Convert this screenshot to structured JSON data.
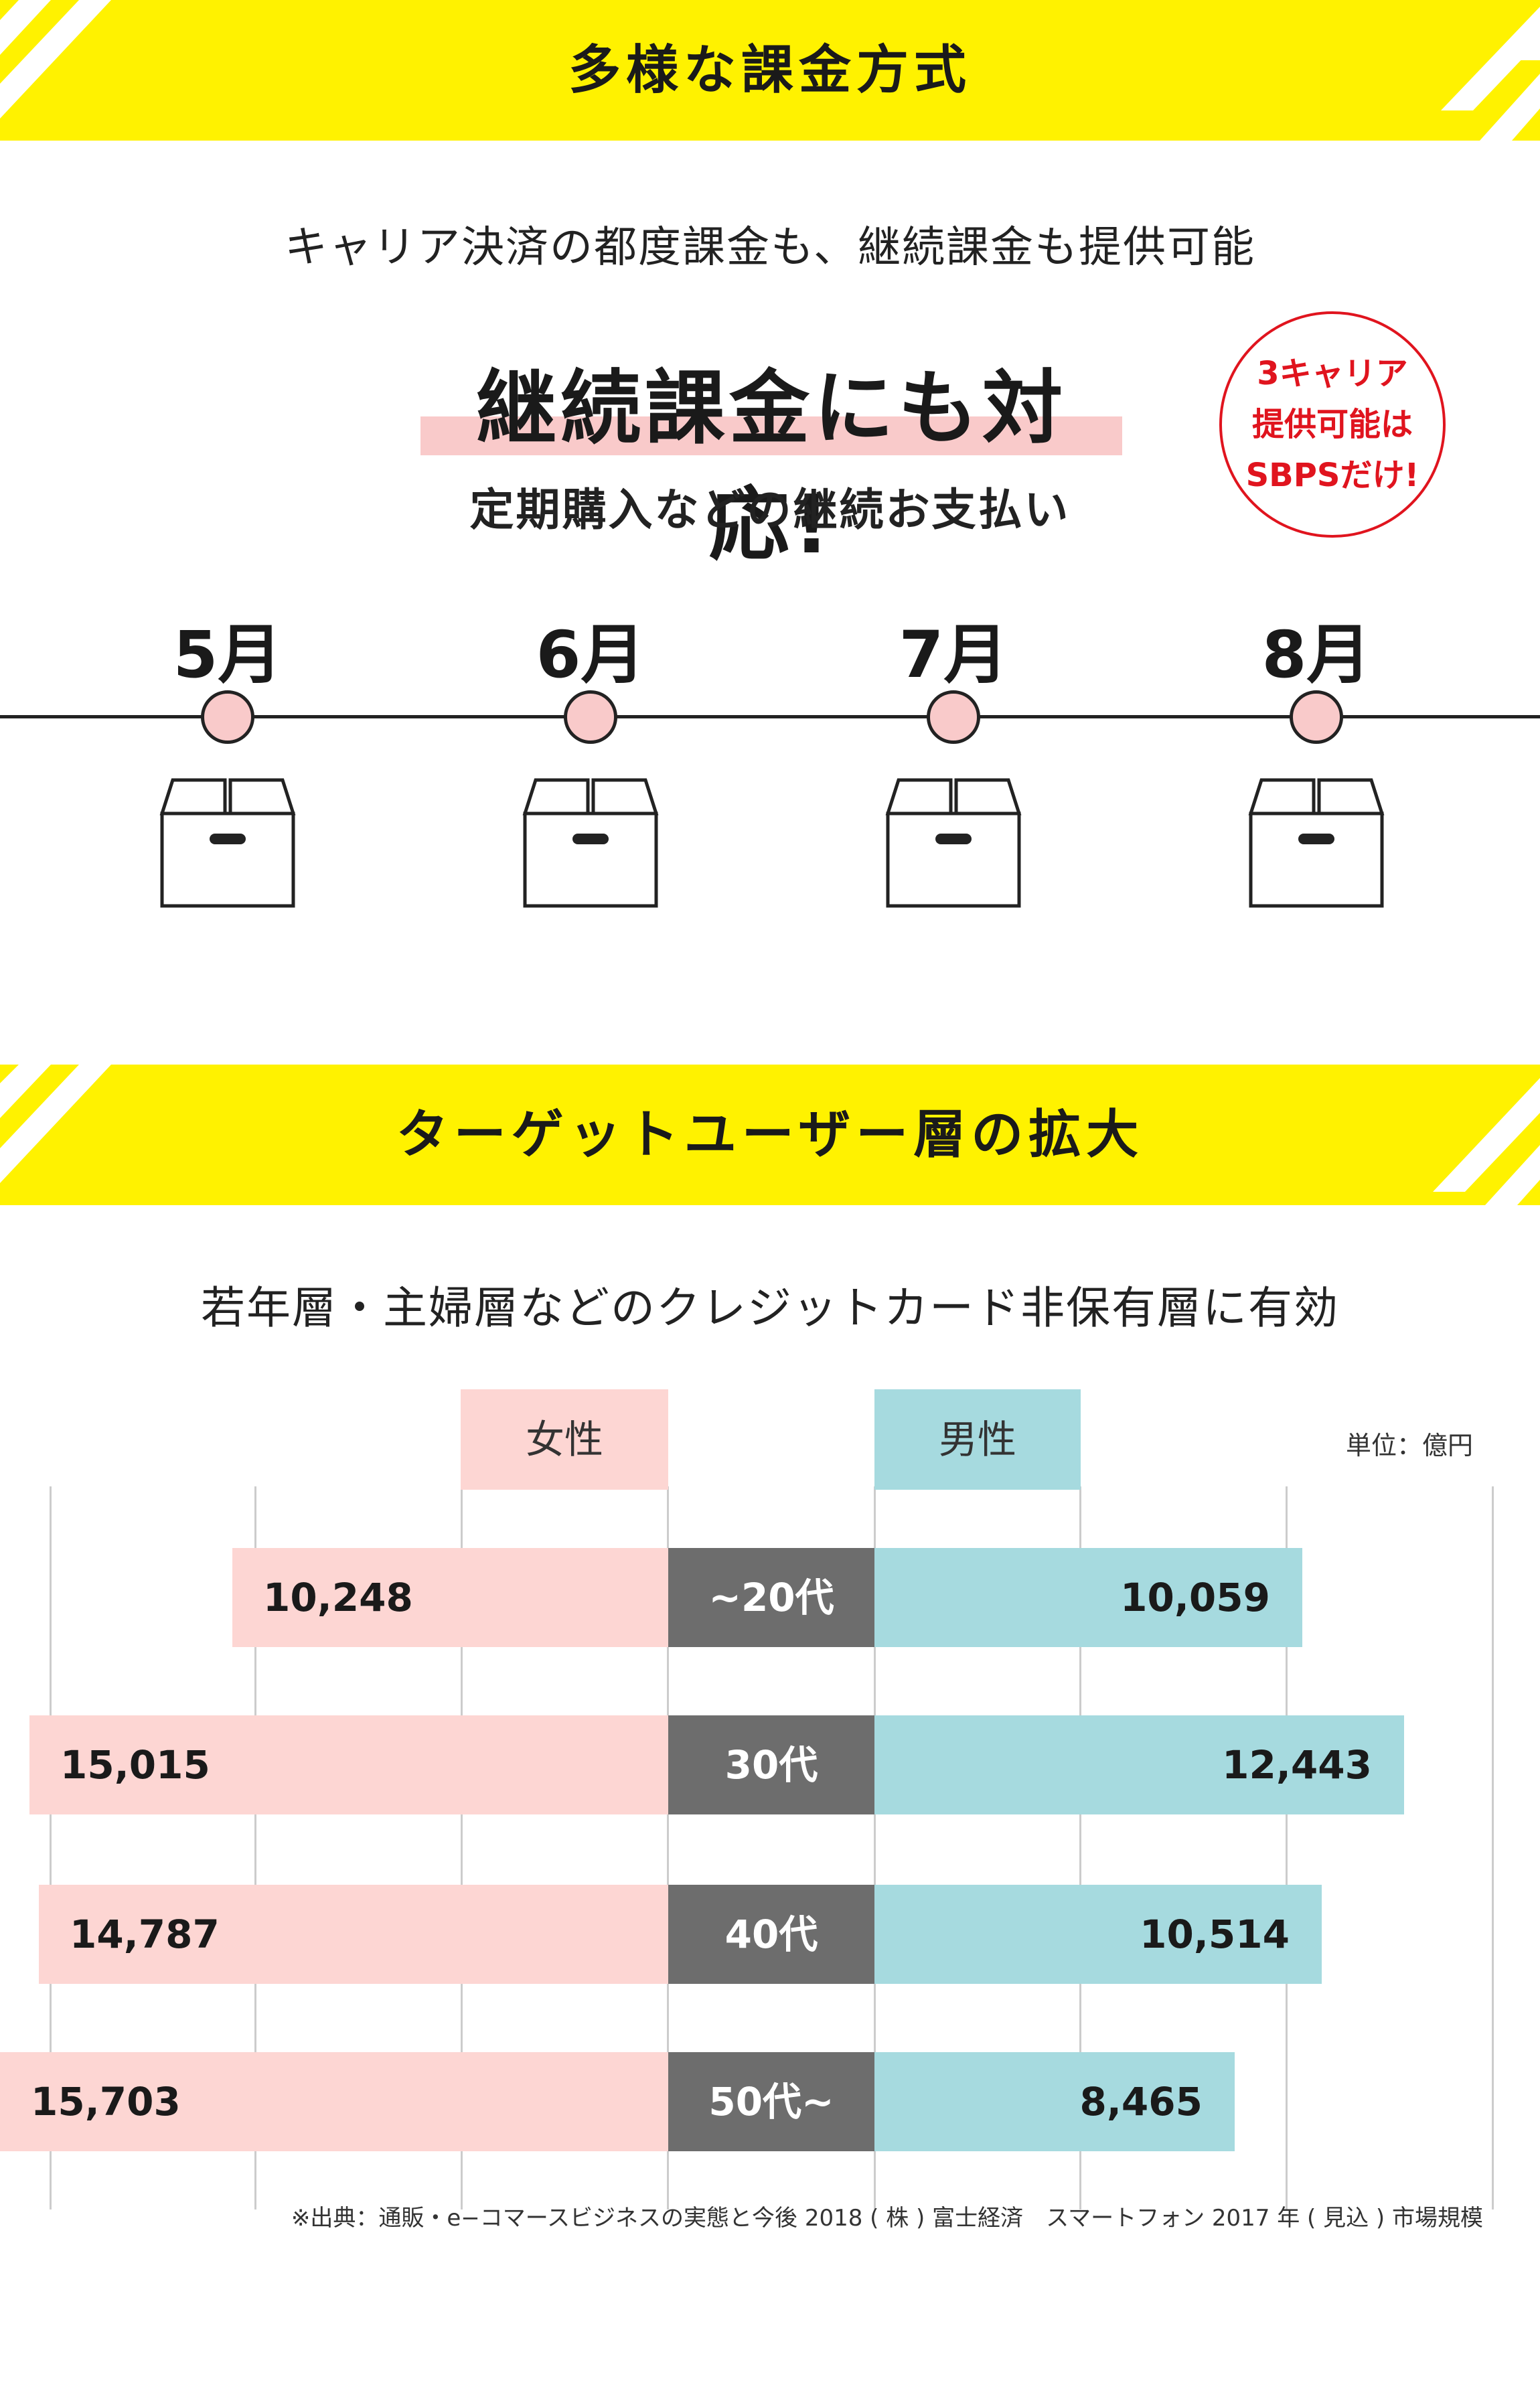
{
  "section1": {
    "banner_title": "多様な課金方式",
    "subtitle": "キャリア決済の都度課金も、継続課金も提供可能",
    "headline": "継続課金にも対応!",
    "subhead": "定期購入などの継続お支払い",
    "badge": {
      "line1": "3キャリア",
      "line2": "提供可能は",
      "line3": "SBPSだけ!"
    },
    "timeline": {
      "months": [
        "5月",
        "6月",
        "7月",
        "8月"
      ],
      "dot_color": "#f9caca"
    }
  },
  "section2": {
    "banner_title": "ターゲットユーザー層の拡大",
    "subtitle": "若年層・主婦層などのクレジットカード非保有層に有効"
  },
  "colors": {
    "banner_yellow": "#fff200",
    "female": "#fdd6d3",
    "male": "#a6dadf",
    "age_label": "#6d6d6d",
    "badge_red": "#e0141e"
  },
  "chart_data": {
    "type": "bar",
    "orientation": "horizontal-butterfly",
    "categories": [
      "~20代",
      "30代",
      "40代",
      "50代~"
    ],
    "series": [
      {
        "name": "女性",
        "values": [
          10248,
          15015,
          14787,
          15703
        ]
      },
      {
        "name": "男性",
        "values": [
          10059,
          12443,
          10514,
          8465
        ]
      }
    ],
    "value_labels": {
      "female": [
        "10,248",
        "15,015",
        "14,787",
        "15,703"
      ],
      "male": [
        "10,059",
        "12,443",
        "10,514",
        "8,465"
      ]
    },
    "unit": "単位：億円",
    "xlim": [
      0,
      16000
    ],
    "grid": true
  },
  "source": "※出典：通販・e−コマースビジネスの実態と今後 2018 ( 株 ) 富士経済　スマートフォン 2017 年 ( 見込 ) 市場規模"
}
